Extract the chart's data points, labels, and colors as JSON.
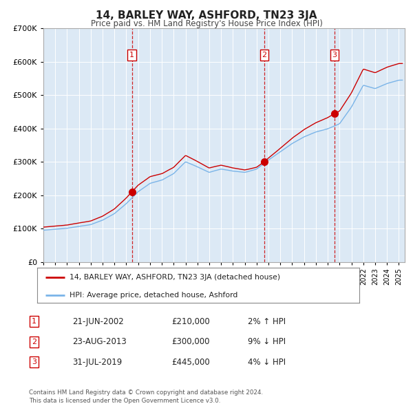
{
  "title": "14, BARLEY WAY, ASHFORD, TN23 3JA",
  "subtitle": "Price paid vs. HM Land Registry's House Price Index (HPI)",
  "ylim": [
    0,
    700000
  ],
  "yticks": [
    0,
    100000,
    200000,
    300000,
    400000,
    500000,
    600000,
    700000
  ],
  "xlim_start": 1995.0,
  "xlim_end": 2025.5,
  "background_color": "#dce9f5",
  "fig_bg_color": "#ffffff",
  "grid_color": "#ffffff",
  "hpi_line_color": "#7ab4e8",
  "price_line_color": "#cc0000",
  "sale_marker_color": "#cc0000",
  "vline_color": "#cc0000",
  "legend_label_price": "14, BARLEY WAY, ASHFORD, TN23 3JA (detached house)",
  "legend_label_hpi": "HPI: Average price, detached house, Ashford",
  "footer": "Contains HM Land Registry data © Crown copyright and database right 2024.\nThis data is licensed under the Open Government Licence v3.0.",
  "sales": [
    {
      "num": 1,
      "date": "21-JUN-2002",
      "price": 210000,
      "hpi_diff": "2% ↑ HPI",
      "year": 2002.47
    },
    {
      "num": 2,
      "date": "23-AUG-2013",
      "price": 300000,
      "hpi_diff": "9% ↓ HPI",
      "year": 2013.64
    },
    {
      "num": 3,
      "date": "31-JUL-2019",
      "price": 445000,
      "hpi_diff": "4% ↓ HPI",
      "year": 2019.58
    }
  ],
  "hpi_base_prices": {
    "1995": 95000,
    "1997": 100000,
    "1999": 112000,
    "2000": 125000,
    "2001": 145000,
    "2002": 175000,
    "2003": 210000,
    "2004": 235000,
    "2005": 245000,
    "2006": 265000,
    "2007": 300000,
    "2008": 285000,
    "2009": 268000,
    "2010": 278000,
    "2011": 272000,
    "2012": 268000,
    "2013": 278000,
    "2014": 305000,
    "2015": 330000,
    "2016": 355000,
    "2017": 375000,
    "2018": 390000,
    "2019": 400000,
    "2020": 415000,
    "2021": 465000,
    "2022": 530000,
    "2023": 520000,
    "2024": 535000,
    "2025": 545000
  }
}
